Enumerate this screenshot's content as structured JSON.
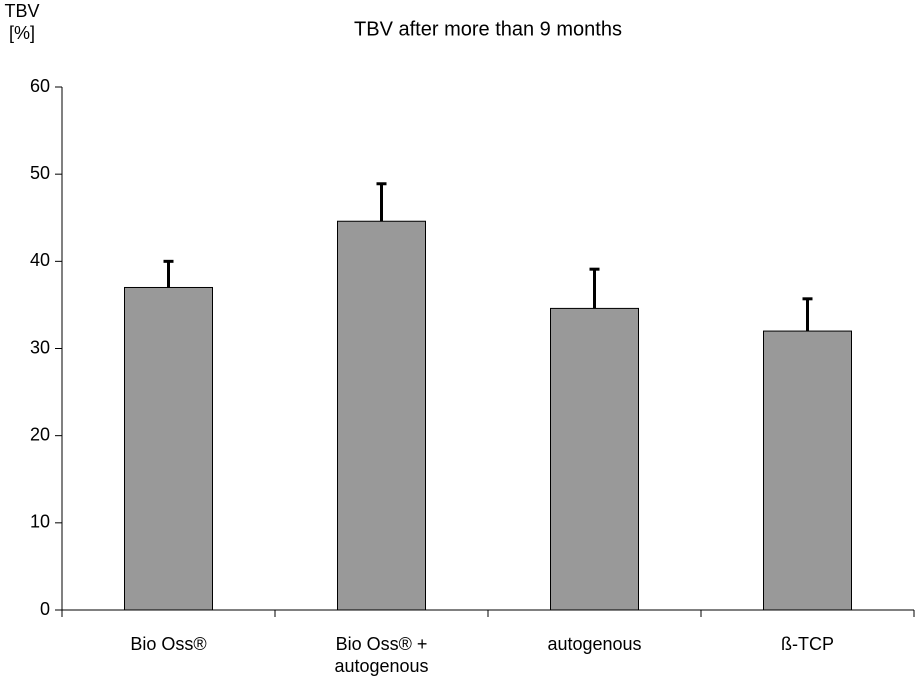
{
  "chart_data": {
    "type": "bar",
    "title": "TBV after more than 9 months",
    "y_label": "TBV [%]",
    "categories": [
      "Bio Oss®",
      "Bio Oss® + autogenous",
      "autogenous",
      "ß-TCP"
    ],
    "values": [
      37.0,
      44.6,
      34.6,
      32.0
    ],
    "errors": [
      3.0,
      4.3,
      4.5,
      3.7
    ],
    "color": "#999999",
    "ylim": [
      0,
      60
    ],
    "yticks": [
      0,
      10,
      20,
      30,
      40,
      50,
      60
    ],
    "grid": false
  }
}
